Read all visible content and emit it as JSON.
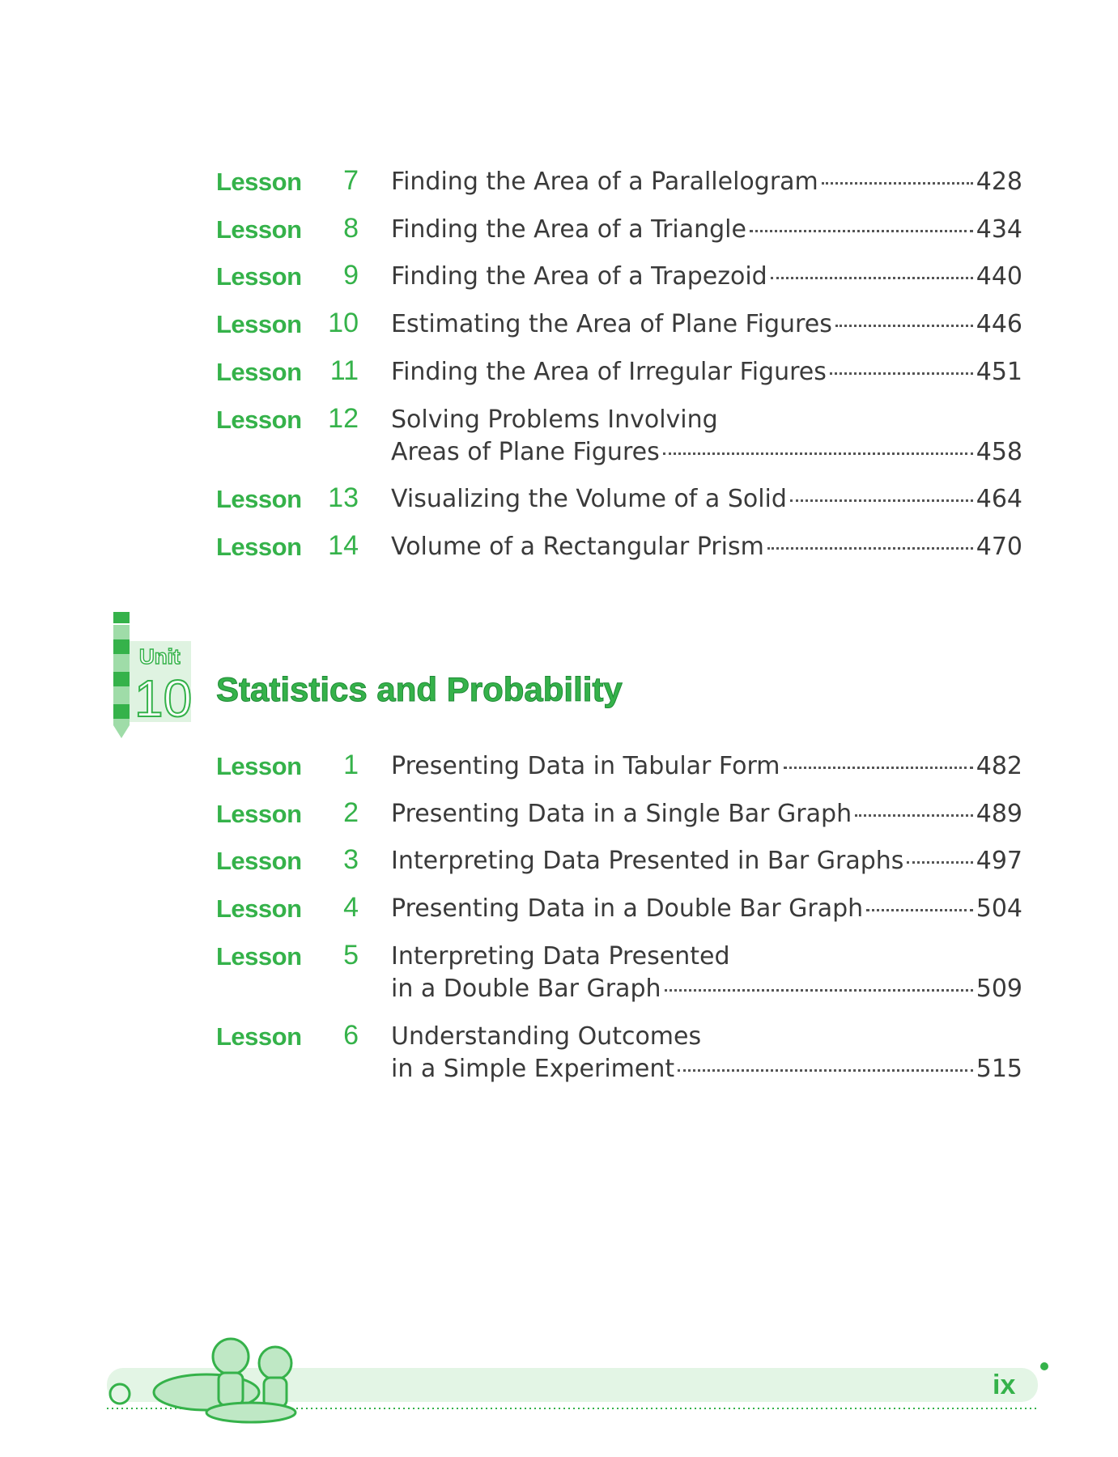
{
  "lessons_top": [
    {
      "label": "Lesson",
      "number": 7,
      "title_lines": [
        "Finding the Area of a Parallelogram"
      ],
      "page": 428
    },
    {
      "label": "Lesson",
      "number": 8,
      "title_lines": [
        "Finding the Area of a Triangle"
      ],
      "page": 434
    },
    {
      "label": "Lesson",
      "number": 9,
      "title_lines": [
        "Finding the Area of a Trapezoid"
      ],
      "page": 440
    },
    {
      "label": "Lesson",
      "number": 10,
      "title_lines": [
        "Estimating the Area of Plane Figures"
      ],
      "page": 446
    },
    {
      "label": "Lesson",
      "number": 11,
      "title_lines": [
        "Finding the Area of Irregular Figures"
      ],
      "page": 451
    },
    {
      "label": "Lesson",
      "number": 12,
      "title_lines": [
        "Solving Problems Involving",
        "Areas of Plane Figures"
      ],
      "page": 458
    },
    {
      "label": "Lesson",
      "number": 13,
      "title_lines": [
        "Visualizing the Volume of a Solid"
      ],
      "page": 464
    },
    {
      "label": "Lesson",
      "number": 14,
      "title_lines": [
        "Volume of a Rectangular Prism"
      ],
      "page": 470
    }
  ],
  "unit": {
    "label": "Unit",
    "number": 10,
    "title": "Statistics and Probability"
  },
  "lessons_bottom": [
    {
      "label": "Lesson",
      "number": 1,
      "title_lines": [
        "Presenting Data in Tabular Form"
      ],
      "page": 482
    },
    {
      "label": "Lesson",
      "number": 2,
      "title_lines": [
        "Presenting Data in a Single Bar Graph"
      ],
      "page": 489
    },
    {
      "label": "Lesson",
      "number": 3,
      "title_lines": [
        "Interpreting Data Presented in Bar Graphs"
      ],
      "page": 497
    },
    {
      "label": "Lesson",
      "number": 4,
      "title_lines": [
        "Presenting Data in a Double Bar Graph"
      ],
      "page": 504
    },
    {
      "label": "Lesson",
      "number": 5,
      "title_lines": [
        "Interpreting Data Presented",
        "in a Double Bar Graph"
      ],
      "page": 509
    },
    {
      "label": "Lesson",
      "number": 6,
      "title_lines": [
        "Understanding Outcomes",
        "in a Simple Experiment"
      ],
      "page": 515
    }
  ],
  "page_number": "ix"
}
